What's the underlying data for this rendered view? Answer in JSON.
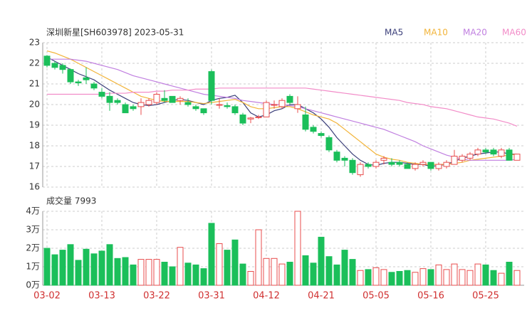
{
  "chart_data": [
    {
      "type": "candlestick",
      "title": "深圳新星[SH603978] 2023-05-31",
      "categories": [
        "03-02",
        null,
        null,
        null,
        null,
        null,
        null,
        "03-13",
        null,
        null,
        null,
        null,
        null,
        null,
        "03-22",
        null,
        null,
        null,
        null,
        null,
        null,
        "03-31",
        null,
        null,
        null,
        null,
        null,
        null,
        "04-12",
        null,
        null,
        null,
        null,
        null,
        null,
        "04-21",
        null,
        null,
        null,
        null,
        null,
        null,
        "05-05",
        null,
        null,
        null,
        null,
        null,
        null,
        "05-16",
        null,
        null,
        null,
        null,
        null,
        null,
        "05-25",
        null,
        null,
        null,
        null
      ],
      "open": [
        22.35,
        22.0,
        21.9,
        21.7,
        21.1,
        21.3,
        21.0,
        20.6,
        20.4,
        20.2,
        20.0,
        19.9,
        19.9,
        20.0,
        20.1,
        20.3,
        20.4,
        20.2,
        20.1,
        19.9,
        19.8,
        21.6,
        20.0,
        19.95,
        19.9,
        19.5,
        19.3,
        19.4,
        19.4,
        20.0,
        19.9,
        20.4,
        19.8,
        19.5,
        18.9,
        18.6,
        18.4,
        17.7,
        17.4,
        17.3,
        16.6,
        17.1,
        17.0,
        17.3,
        17.2,
        17.2,
        17.1,
        16.9,
        17.1,
        17.2,
        16.9,
        17.0,
        17.1,
        17.3,
        17.4,
        17.6,
        17.8,
        17.8,
        17.5,
        17.8,
        17.3
      ],
      "high": [
        22.4,
        22.1,
        22.0,
        21.75,
        21.2,
        21.8,
        21.1,
        20.8,
        20.6,
        20.3,
        20.1,
        20.0,
        20.3,
        20.3,
        20.6,
        20.7,
        20.4,
        20.4,
        20.3,
        20.0,
        19.8,
        21.7,
        20.3,
        20.1,
        20.0,
        19.6,
        19.4,
        19.5,
        20.2,
        20.2,
        20.3,
        20.5,
        20.4,
        19.9,
        19.0,
        18.7,
        18.5,
        17.8,
        17.5,
        17.4,
        17.2,
        17.2,
        17.3,
        17.5,
        17.4,
        17.3,
        17.2,
        17.2,
        17.3,
        17.2,
        17.2,
        17.3,
        17.8,
        17.6,
        17.7,
        17.9,
        17.9,
        17.9,
        17.9,
        17.9,
        17.6
      ],
      "low": [
        21.8,
        21.7,
        21.5,
        21.0,
        20.9,
        21.0,
        20.7,
        20.3,
        19.7,
        20.0,
        19.6,
        19.7,
        19.5,
        19.9,
        20.0,
        20.1,
        20.1,
        20.0,
        19.9,
        19.7,
        19.5,
        20.0,
        19.8,
        19.8,
        19.5,
        19.0,
        19.1,
        19.3,
        19.4,
        19.8,
        19.8,
        20.0,
        19.6,
        18.7,
        18.6,
        18.4,
        17.7,
        17.2,
        17.0,
        16.6,
        16.5,
        16.9,
        16.9,
        17.1,
        17.0,
        17.0,
        16.9,
        16.8,
        17.0,
        16.8,
        16.8,
        16.9,
        17.1,
        17.2,
        17.3,
        17.5,
        17.6,
        17.5,
        17.4,
        17.3,
        17.3
      ],
      "close": [
        21.9,
        21.8,
        21.7,
        21.1,
        21.05,
        21.2,
        20.8,
        20.4,
        20.1,
        20.1,
        19.6,
        19.8,
        20.1,
        20.2,
        20.5,
        20.2,
        20.1,
        20.3,
        20.0,
        19.8,
        19.6,
        20.2,
        20.0,
        19.9,
        19.6,
        19.1,
        19.35,
        19.4,
        20.1,
        20.0,
        20.2,
        20.1,
        20.0,
        18.8,
        18.7,
        18.5,
        17.8,
        17.3,
        17.3,
        16.7,
        17.1,
        17.0,
        17.2,
        17.4,
        17.1,
        17.1,
        16.9,
        17.1,
        17.2,
        16.9,
        17.1,
        17.2,
        17.5,
        17.5,
        17.6,
        17.8,
        17.7,
        17.6,
        17.8,
        17.3,
        17.6
      ],
      "up_color": "#e84c4c",
      "down_color": "#1bbf5a",
      "series": [
        {
          "name": "MA5",
          "color": "#3b3f7a",
          "values": [
            22.3,
            22.1,
            21.9,
            21.7,
            21.5,
            21.35,
            21.2,
            20.95,
            20.7,
            20.5,
            20.3,
            20.1,
            20.0,
            19.95,
            20.0,
            20.1,
            20.2,
            20.25,
            20.2,
            20.1,
            20.0,
            20.2,
            20.3,
            20.35,
            20.45,
            20.1,
            19.6,
            19.4,
            19.5,
            19.7,
            19.8,
            20.0,
            20.0,
            19.8,
            19.6,
            19.3,
            18.9,
            18.4,
            18.0,
            17.6,
            17.3,
            17.1,
            17.05,
            17.15,
            17.2,
            17.2,
            17.15,
            17.1,
            17.1,
            17.0,
            17.05,
            17.1,
            17.25,
            17.4,
            17.5,
            17.6,
            17.65,
            17.7,
            17.7,
            17.6,
            17.6
          ]
        },
        {
          "name": "MA10",
          "color": "#f2b43a",
          "values": [
            22.6,
            22.5,
            22.35,
            22.2,
            22.0,
            21.8,
            21.6,
            21.4,
            21.2,
            21.0,
            20.8,
            20.6,
            20.4,
            20.3,
            20.2,
            20.15,
            20.15,
            20.15,
            20.15,
            20.1,
            20.05,
            20.1,
            20.15,
            20.2,
            20.25,
            20.1,
            19.9,
            19.8,
            19.8,
            19.85,
            19.9,
            19.9,
            19.8,
            19.65,
            19.5,
            19.4,
            19.3,
            19.1,
            18.8,
            18.5,
            18.2,
            17.9,
            17.6,
            17.45,
            17.35,
            17.3,
            17.2,
            17.15,
            17.1,
            17.1,
            17.1,
            17.1,
            17.15,
            17.2,
            17.3,
            17.35,
            17.4,
            17.45,
            17.5,
            17.55,
            17.6
          ]
        },
        {
          "name": "MA20",
          "color": "#c07fe0",
          "values": [
            22.2,
            22.2,
            22.2,
            22.2,
            22.15,
            22.1,
            22.0,
            21.9,
            21.8,
            21.7,
            21.55,
            21.4,
            21.3,
            21.2,
            21.1,
            21.0,
            20.9,
            20.8,
            20.7,
            20.6,
            20.5,
            20.45,
            20.4,
            20.35,
            20.3,
            20.2,
            20.15,
            20.1,
            20.05,
            20.0,
            20.0,
            19.95,
            19.9,
            19.8,
            19.7,
            19.6,
            19.5,
            19.4,
            19.3,
            19.2,
            19.1,
            19.0,
            18.9,
            18.8,
            18.65,
            18.5,
            18.35,
            18.2,
            18.0,
            17.85,
            17.7,
            17.55,
            17.45,
            17.35,
            17.3,
            17.3,
            17.3,
            17.3,
            17.3,
            17.3,
            17.35
          ]
        },
        {
          "name": "MA60",
          "color": "#f28cc8",
          "values": [
            20.5,
            20.5,
            20.5,
            20.5,
            20.5,
            20.5,
            20.5,
            20.5,
            20.55,
            20.55,
            20.55,
            20.6,
            20.6,
            20.6,
            20.65,
            20.65,
            20.7,
            20.7,
            20.7,
            20.75,
            20.75,
            20.75,
            20.8,
            20.8,
            20.8,
            20.8,
            20.8,
            20.8,
            20.8,
            20.8,
            20.8,
            20.8,
            20.8,
            20.8,
            20.75,
            20.7,
            20.65,
            20.6,
            20.55,
            20.5,
            20.45,
            20.4,
            20.35,
            20.3,
            20.25,
            20.2,
            20.1,
            20.05,
            20.0,
            19.9,
            19.85,
            19.8,
            19.7,
            19.6,
            19.5,
            19.4,
            19.35,
            19.3,
            19.2,
            19.1,
            18.95
          ]
        }
      ],
      "ylim": [
        16,
        23
      ],
      "yticks": [
        16,
        17,
        18,
        19,
        20,
        21,
        22,
        23
      ],
      "grid": true
    },
    {
      "type": "bar",
      "title": "成交量 7993",
      "values": [
        2.0,
        1.65,
        1.9,
        2.2,
        1.35,
        1.95,
        1.7,
        1.85,
        2.2,
        1.45,
        1.5,
        1.1,
        1.4,
        1.4,
        1.4,
        1.25,
        1.0,
        2.05,
        1.2,
        1.1,
        0.9,
        3.35,
        2.25,
        1.9,
        2.45,
        1.15,
        0.75,
        3.0,
        1.45,
        1.45,
        1.15,
        1.25,
        4.0,
        1.6,
        1.2,
        2.6,
        1.55,
        1.1,
        1.9,
        1.4,
        0.8,
        0.85,
        0.95,
        0.85,
        0.7,
        0.75,
        0.8,
        0.7,
        0.9,
        0.85,
        1.1,
        0.85,
        1.15,
        0.85,
        0.8,
        1.15,
        1.1,
        0.8,
        0.65,
        1.25,
        0.8
      ],
      "ylim": [
        0,
        4
      ],
      "yticks": [
        {
          "value": 0,
          "label": "0万"
        },
        {
          "value": 1,
          "label": "1万"
        },
        {
          "value": 2,
          "label": "2万"
        },
        {
          "value": 3,
          "label": "3万"
        },
        {
          "value": 4,
          "label": "4万"
        }
      ],
      "grid": true
    }
  ]
}
